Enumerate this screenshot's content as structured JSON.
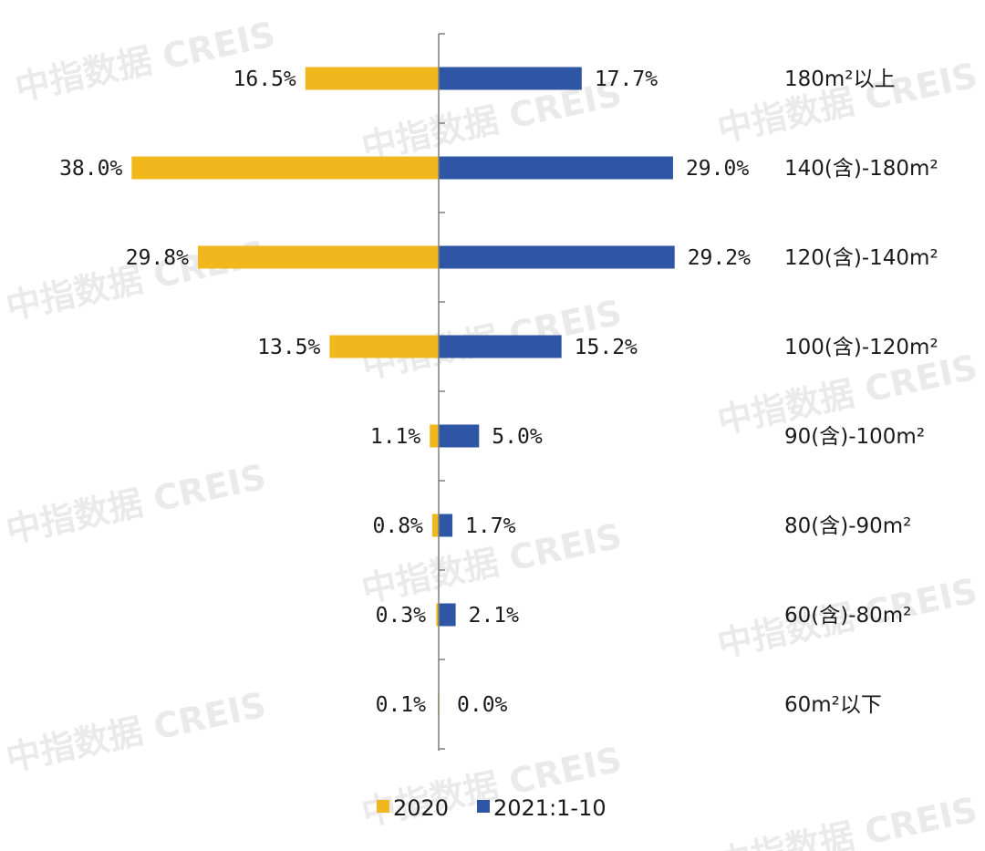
{
  "watermark": "中指数据 CREIS",
  "colors": {
    "series_2020": "#f0b81c",
    "series_2021": "#2e56a4",
    "axis": "#7f7f7f",
    "text": "#1a1a1a"
  },
  "chart_data": {
    "type": "bar",
    "orientation": "horizontal-butterfly",
    "categories": [
      "180m²以上",
      "140(含)-180m²",
      "120(含)-140m²",
      "100(含)-120m²",
      "90(含)-100m²",
      "80(含)-90m²",
      "60(含)-80m²",
      "60m²以下"
    ],
    "series": [
      {
        "name": "2020",
        "side": "left",
        "values": [
          16.5,
          38.0,
          29.8,
          13.5,
          1.1,
          0.8,
          0.3,
          0.1
        ],
        "labels": [
          "16.5%",
          "38.0%",
          "29.8%",
          "13.5%",
          "1.1%",
          "0.8%",
          "0.3%",
          "0.1%"
        ]
      },
      {
        "name": "2021:1-10",
        "side": "right",
        "values": [
          17.7,
          29.0,
          29.2,
          15.2,
          5.0,
          1.7,
          2.1,
          0.0
        ],
        "labels": [
          "17.7%",
          "29.0%",
          "29.2%",
          "15.2%",
          "5.0%",
          "1.7%",
          "2.1%",
          "0.0%"
        ]
      }
    ],
    "unit": "%",
    "legend": {
      "position": "bottom",
      "entries": [
        "2020",
        "2021:1-10"
      ]
    },
    "grid": false
  }
}
